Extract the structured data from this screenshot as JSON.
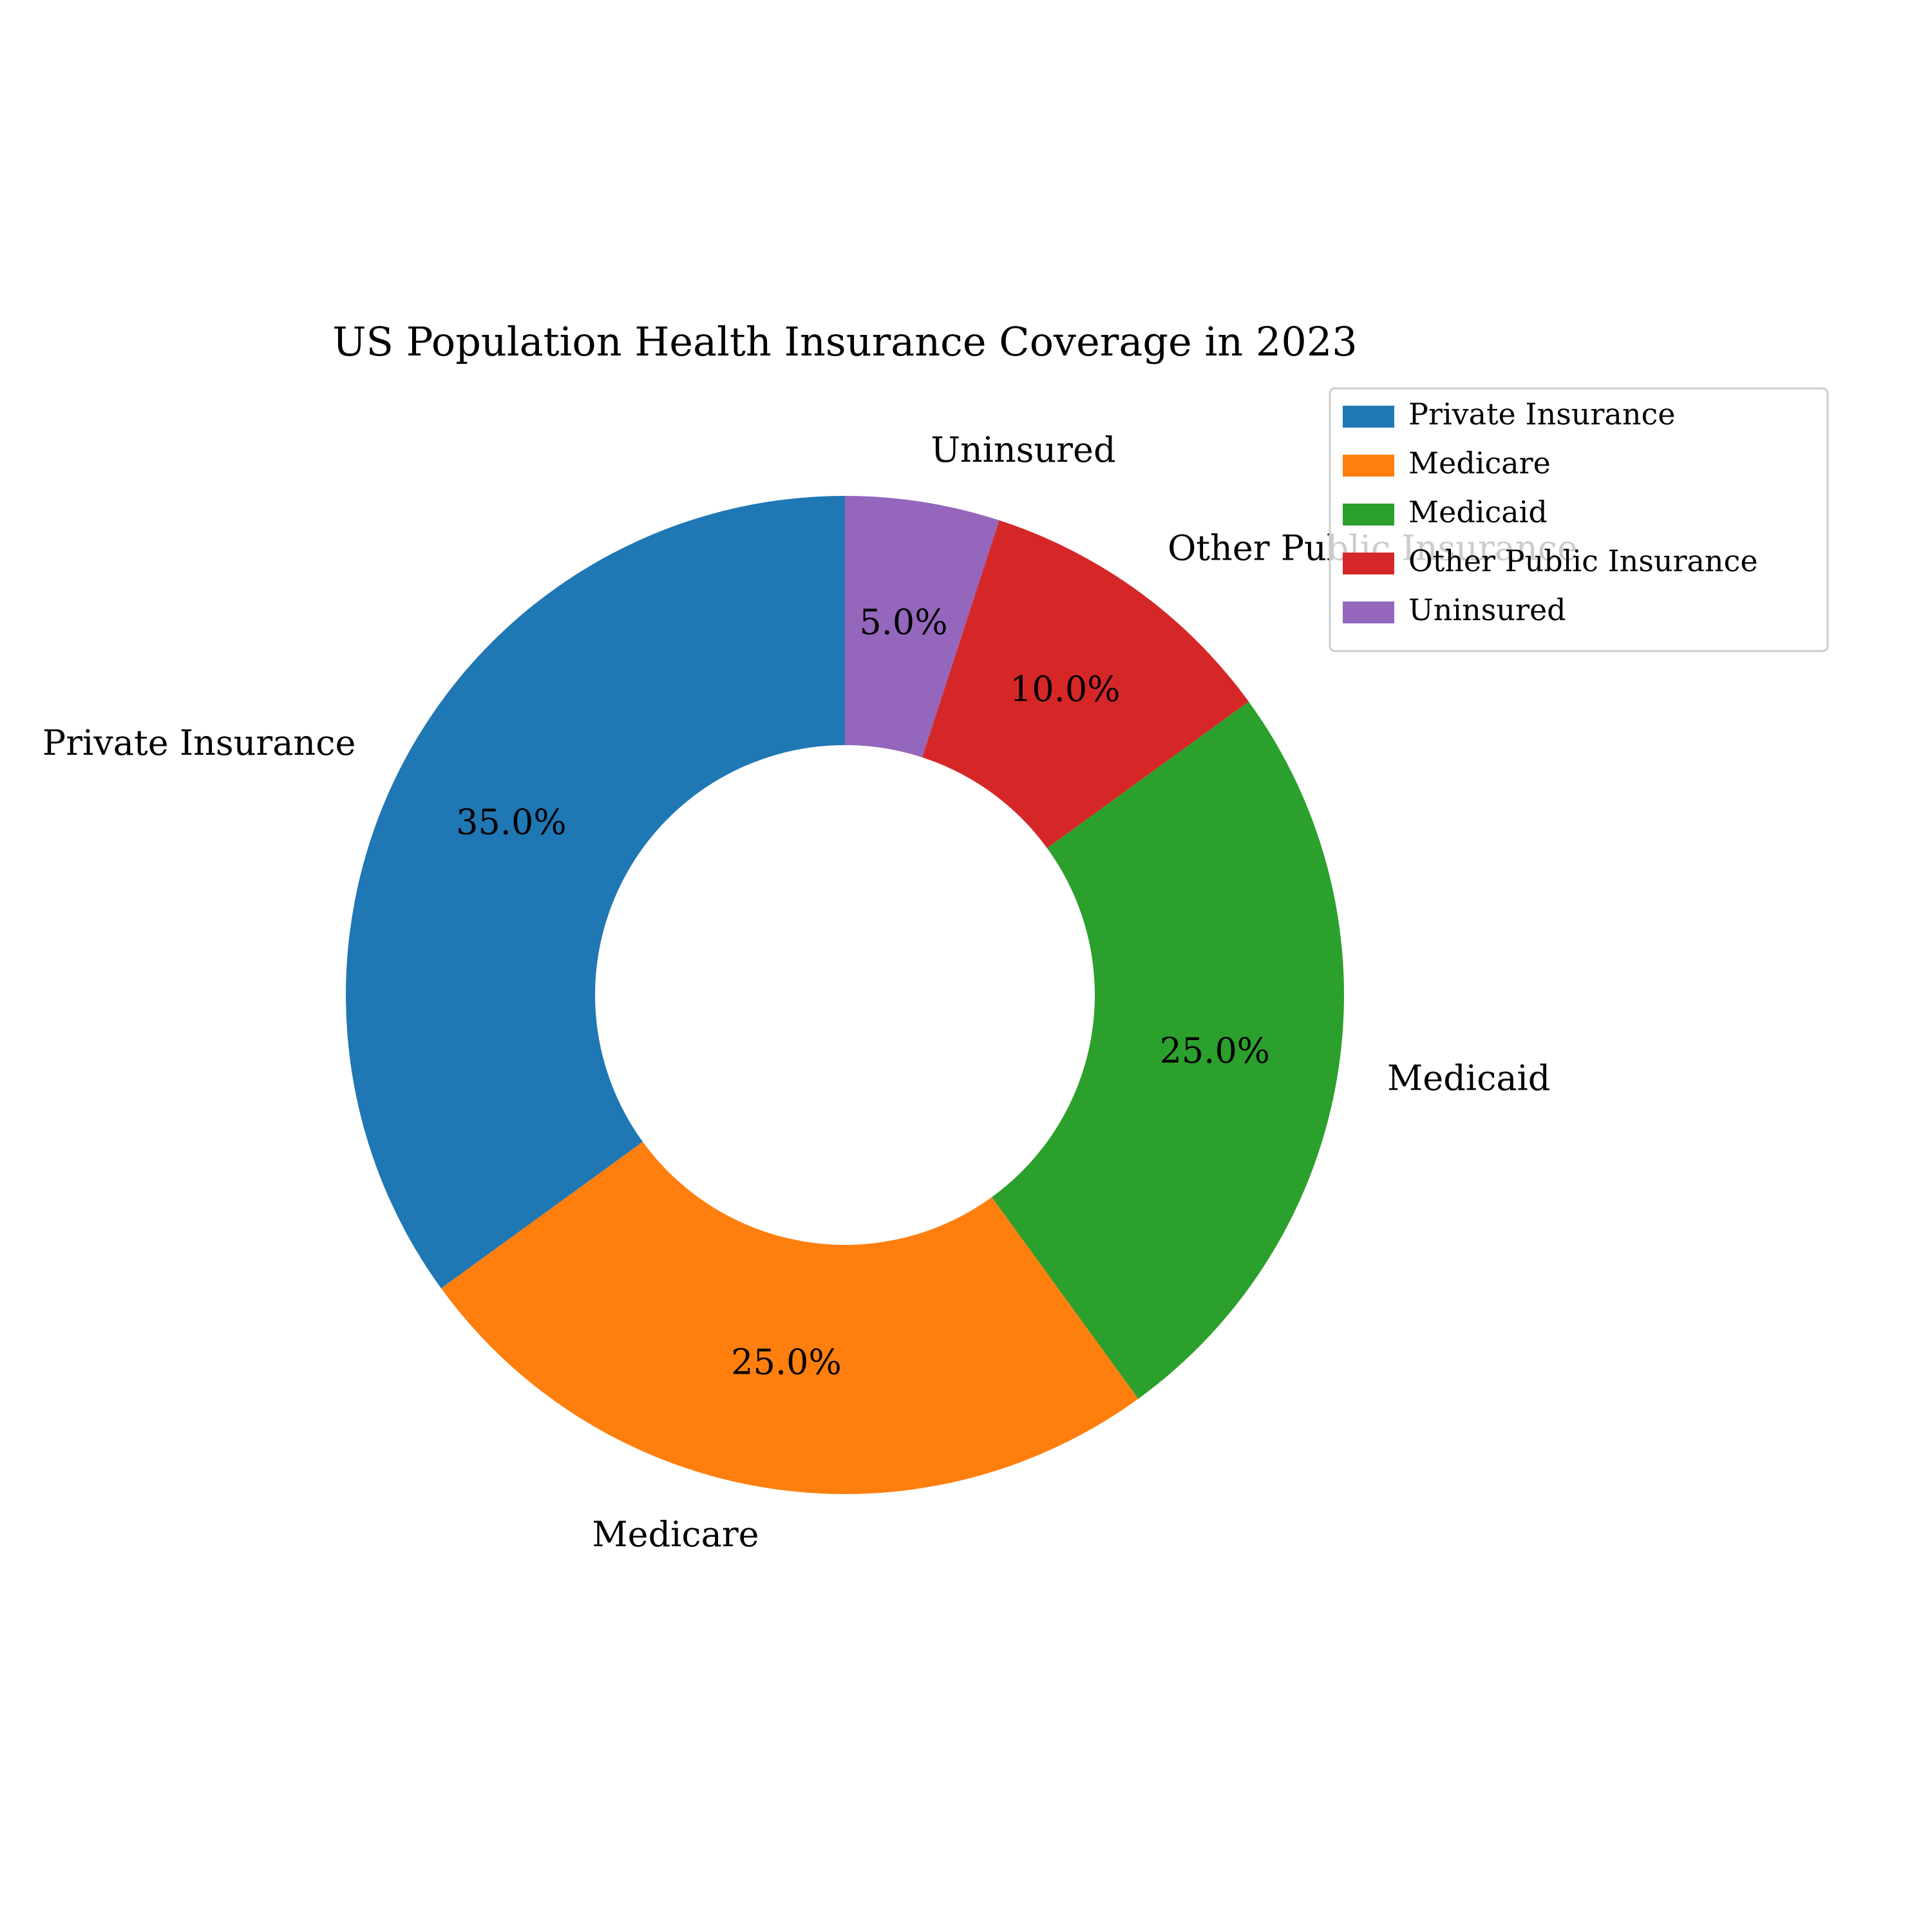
{
  "chart_data": {
    "type": "pie",
    "donut": true,
    "title": "US Population Health Insurance Coverage in 2023",
    "categories": [
      "Private Insurance",
      "Medicare",
      "Medicaid",
      "Other Public Insurance",
      "Uninsured"
    ],
    "values": [
      35.0,
      25.0,
      25.0,
      10.0,
      5.0
    ],
    "percent_labels": [
      "35.0%",
      "25.0%",
      "25.0%",
      "10.0%",
      "5.0%"
    ],
    "colors": [
      "#1f77b4",
      "#ff7f0e",
      "#2ca02c",
      "#d62728",
      "#9467bd"
    ],
    "start_angle_deg": 90,
    "direction": "counterclockwise",
    "legend": {
      "placement": "top-right",
      "entries": [
        "Private Insurance",
        "Medicare",
        "Medicaid",
        "Other Public Insurance",
        "Uninsured"
      ]
    }
  }
}
